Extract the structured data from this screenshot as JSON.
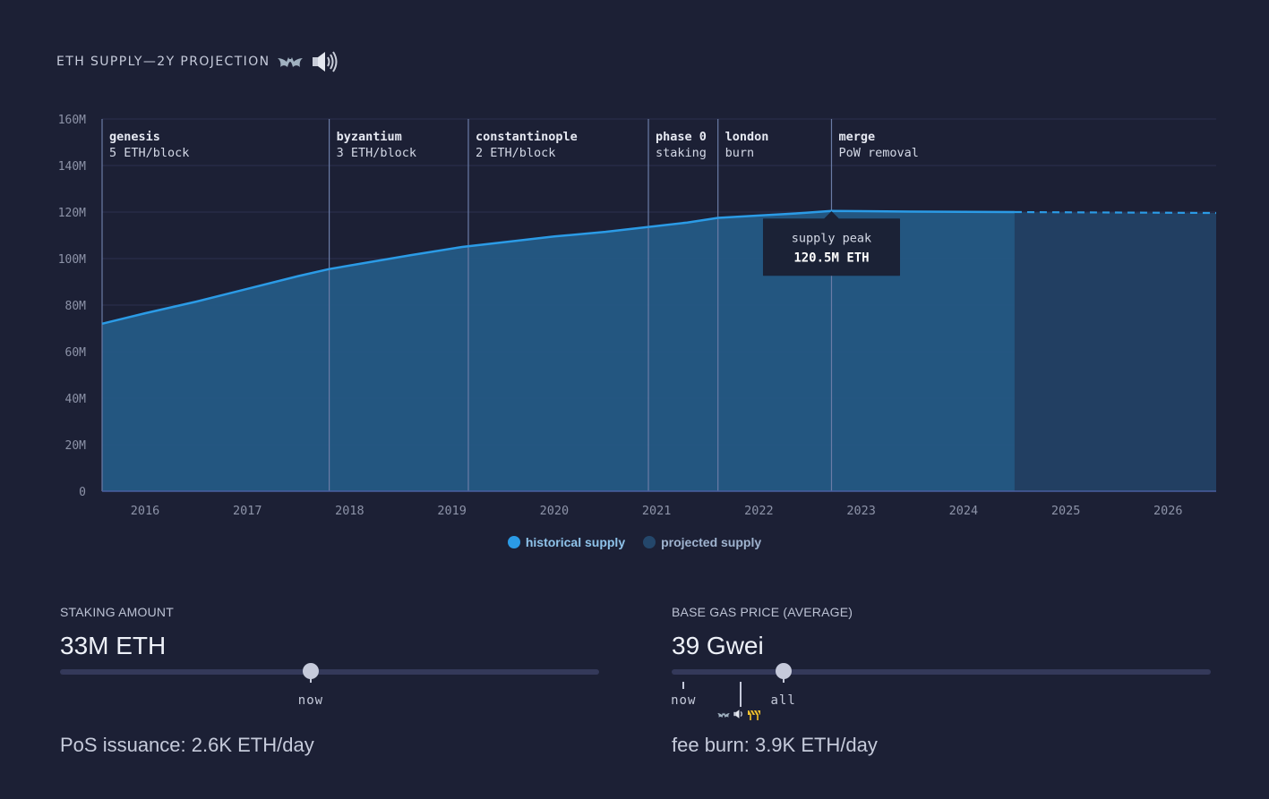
{
  "header": {
    "title": "ETH SUPPLY—2Y PROJECTION",
    "bat_icon": "bat-icon",
    "sound_icon": "speaker-icon"
  },
  "colors": {
    "historical": "#2b9be6",
    "historical_fill": "#245a85",
    "projected": "#1f4a70",
    "projected_fill": "#223f62",
    "gridline": "#2b3150",
    "background": "#1c2035"
  },
  "chart_data": {
    "type": "area",
    "xlim": [
      2015.58,
      2026.47
    ],
    "ylim": [
      0,
      160
    ],
    "yunit": "M",
    "yticks": [
      "0",
      "20M",
      "40M",
      "60M",
      "80M",
      "100M",
      "120M",
      "140M",
      "160M"
    ],
    "ytick_values": [
      0,
      20,
      40,
      60,
      80,
      100,
      120,
      140,
      160
    ],
    "xticks": [
      "2016",
      "2017",
      "2018",
      "2019",
      "2020",
      "2021",
      "2022",
      "2023",
      "2024",
      "2025",
      "2026"
    ],
    "xtick_values": [
      2016,
      2017,
      2018,
      2019,
      2020,
      2021,
      2022,
      2023,
      2024,
      2025,
      2026
    ],
    "series": [
      {
        "name": "historical supply",
        "x": [
          2015.58,
          2016.0,
          2016.5,
          2017.0,
          2017.5,
          2017.8,
          2018.2,
          2018.6,
          2019.1,
          2019.6,
          2020.0,
          2020.5,
          2021.0,
          2021.3,
          2021.6,
          2022.0,
          2022.4,
          2022.71,
          2023.0,
          2023.5,
          2024.0,
          2024.5
        ],
        "y": [
          72,
          76.5,
          81.5,
          87,
          92.5,
          95.5,
          98.5,
          101.5,
          105,
          107.5,
          109.5,
          111.5,
          114,
          115.5,
          117.5,
          118.5,
          119.5,
          120.5,
          120.4,
          120.2,
          120.1,
          120.0
        ]
      },
      {
        "name": "projected supply",
        "x": [
          2024.5,
          2025.0,
          2025.5,
          2026.0,
          2026.47
        ],
        "y": [
          120.0,
          119.9,
          119.8,
          119.7,
          119.6
        ]
      }
    ],
    "events": [
      {
        "x": 2015.58,
        "name": "genesis",
        "detail": "5 ETH/block"
      },
      {
        "x": 2017.8,
        "name": "byzantium",
        "detail": "3 ETH/block"
      },
      {
        "x": 2019.16,
        "name": "constantinople",
        "detail": "2 ETH/block"
      },
      {
        "x": 2020.92,
        "name": "phase 0",
        "detail": "staking"
      },
      {
        "x": 2021.6,
        "name": "london",
        "detail": "burn"
      },
      {
        "x": 2022.71,
        "name": "merge",
        "detail": "PoW removal"
      }
    ],
    "annotation": {
      "x": 2022.71,
      "y": 120.5,
      "label": "supply peak",
      "value": "120.5M ETH"
    },
    "legend": [
      "historical supply",
      "projected supply"
    ],
    "grid": true
  },
  "staking": {
    "label": "STAKING AMOUNT",
    "value": "33M ETH",
    "slider_fraction": 0.465,
    "tick_label": "now",
    "footer": "PoS issuance: 2.6K ETH/day"
  },
  "gas": {
    "label": "BASE GAS PRICE (AVERAGE)",
    "value": "39 Gwei",
    "slider_fraction": 0.207,
    "tick_now": "now",
    "tick_all": "all",
    "now_fraction": 0.022,
    "marker_fraction": 0.128,
    "footer": "fee burn: 3.9K ETH/day",
    "mini_icons": [
      "bat-icon",
      "speaker-icon",
      "construction-icon"
    ]
  }
}
